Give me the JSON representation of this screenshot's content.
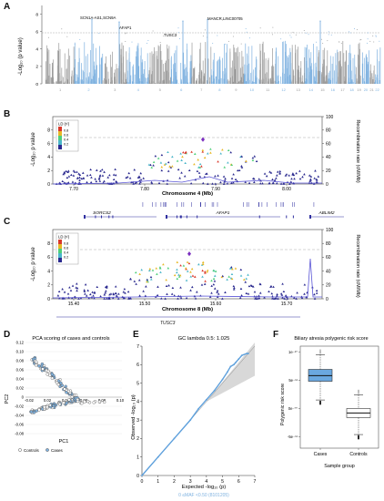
{
  "panels": {
    "A": {
      "letter": "A",
      "ylabel": "-Log₁₀ (p value)",
      "yticks": [
        "0",
        "2",
        "4",
        "6",
        "8"
      ],
      "chromosomes": [
        "1",
        "2",
        "3",
        "4",
        "5",
        "6",
        "7",
        "8",
        "9",
        "10",
        "11",
        "12",
        "13",
        "14",
        "15",
        "16",
        "17",
        "18",
        "19",
        "20",
        "21",
        "22"
      ],
      "annotations": [
        "SCN1A-AS1,SCN9A",
        "AFAP1",
        "TUSC3",
        "MANCR,LINC00705"
      ],
      "colors": {
        "odd": "#9a9a9a",
        "even": "#7fb2e0",
        "threshold": "#9a9a9a"
      }
    },
    "B": {
      "letter": "B",
      "ylabel": "-Log₁₀ p value",
      "y2label": "Recombination rate (cM/Mb)",
      "xlabel": "Chromosome 4 (Mb)",
      "xticks": [
        "7.70",
        "7.80",
        "7.90",
        "8.00"
      ],
      "yticks": [
        "0",
        "2",
        "4",
        "6",
        "8"
      ],
      "y2ticks": [
        "0",
        "20",
        "40",
        "60",
        "80",
        "100"
      ],
      "legend_title": "LD (r²)",
      "legend_values": [
        "0.8",
        "0.6",
        "0.4",
        "0.2"
      ],
      "genes": [
        "SORCS2",
        "AFAP1",
        "ABLIM2"
      ]
    },
    "C": {
      "letter": "C",
      "ylabel": "-Log₁₀ p value",
      "y2label": "Recombination rate (cM/Mb)",
      "xlabel": "Chromosome 8 (Mb)",
      "xticks": [
        "15.40",
        "15.50",
        "15.60",
        "15.70"
      ],
      "yticks": [
        "0",
        "2",
        "4",
        "6",
        "8"
      ],
      "y2ticks": [
        "0",
        "20",
        "40",
        "60",
        "80",
        "100"
      ],
      "legend_title": "LD (r²)",
      "legend_values": [
        "0.8",
        "0.6",
        "0.4",
        "0.2"
      ],
      "genes": [
        "TUSC3"
      ]
    },
    "D": {
      "letter": "D",
      "title": "PCA scoring of cases and controls",
      "xlabel": "PC1",
      "ylabel": "PC2",
      "yticks": [
        "0.12",
        "0.10",
        "0.08",
        "0.06",
        "0.04",
        "0.02",
        "0",
        "-0.02",
        "-0.04",
        "-0.06",
        "-0.08"
      ],
      "xticks": [
        "-0.02",
        "0.02",
        "0.04",
        "0.06",
        "0.08",
        "0.10"
      ],
      "legend": [
        "Controls",
        "Cases"
      ]
    },
    "E": {
      "letter": "E",
      "title": "GC lambda 0.5: 1.025",
      "xlabel": "Expected -log₁₀ (p)",
      "ylabel": "Observed -log₁₀ (p)",
      "xticks": [
        "0",
        "1",
        "2",
        "3",
        "4",
        "5",
        "6",
        "7"
      ],
      "yticks": [
        "0",
        "1",
        "2",
        "3",
        "4",
        "5",
        "6",
        "7"
      ],
      "footnote": "0 ≤MAF <0.50 (8101205)"
    },
    "F": {
      "letter": "F",
      "title": "Biliary atresia polygenic risk score",
      "xlabel": "Sample group",
      "ylabel": "Polygenic risk score",
      "categories": [
        "Cases",
        "Controls"
      ],
      "yticks": [
        "1e⁻¹⁰",
        "5e⁻¹¹",
        "0e⁻⁰⁰",
        "-5e⁻¹¹"
      ]
    }
  },
  "chart_data": [
    {
      "type": "scatter",
      "panel": "E",
      "title": "GC lambda 0.5: 1.025",
      "xlabel": "Expected -log₁₀ (p)",
      "ylabel": "Observed -log₁₀ (p)",
      "xlim": [
        0,
        7
      ],
      "ylim": [
        0,
        7
      ],
      "series": [
        {
          "name": "0 ≤MAF <0.50 (8101205)",
          "x": [
            0,
            1,
            2,
            3,
            3.5,
            4,
            4.5,
            5,
            5.3,
            5.5,
            5.7,
            5.8,
            6.0,
            6.2,
            6.5,
            6.6
          ],
          "y": [
            0,
            1,
            2,
            3,
            3.6,
            4.1,
            4.6,
            5.2,
            5.6,
            5.9,
            6.0,
            6.1,
            6.3,
            6.5,
            6.6,
            6.6
          ]
        }
      ]
    },
    {
      "type": "box",
      "panel": "F",
      "title": "Biliary atresia polygenic risk score",
      "categories": [
        "Cases",
        "Controls"
      ],
      "ylim": [
        -7e-11,
        1.1e-10
      ],
      "boxes": [
        {
          "name": "Cases",
          "whisker_low": 1.5e-11,
          "q1": 4.8e-11,
          "median": 5.8e-11,
          "q3": 6.9e-11,
          "whisker_high": 9.5e-11
        },
        {
          "name": "Controls",
          "whisker_low": -4.6e-11,
          "q1": -1.6e-11,
          "median": -8e-12,
          "q3": 0,
          "whisker_high": 2.4e-11
        }
      ]
    }
  ]
}
